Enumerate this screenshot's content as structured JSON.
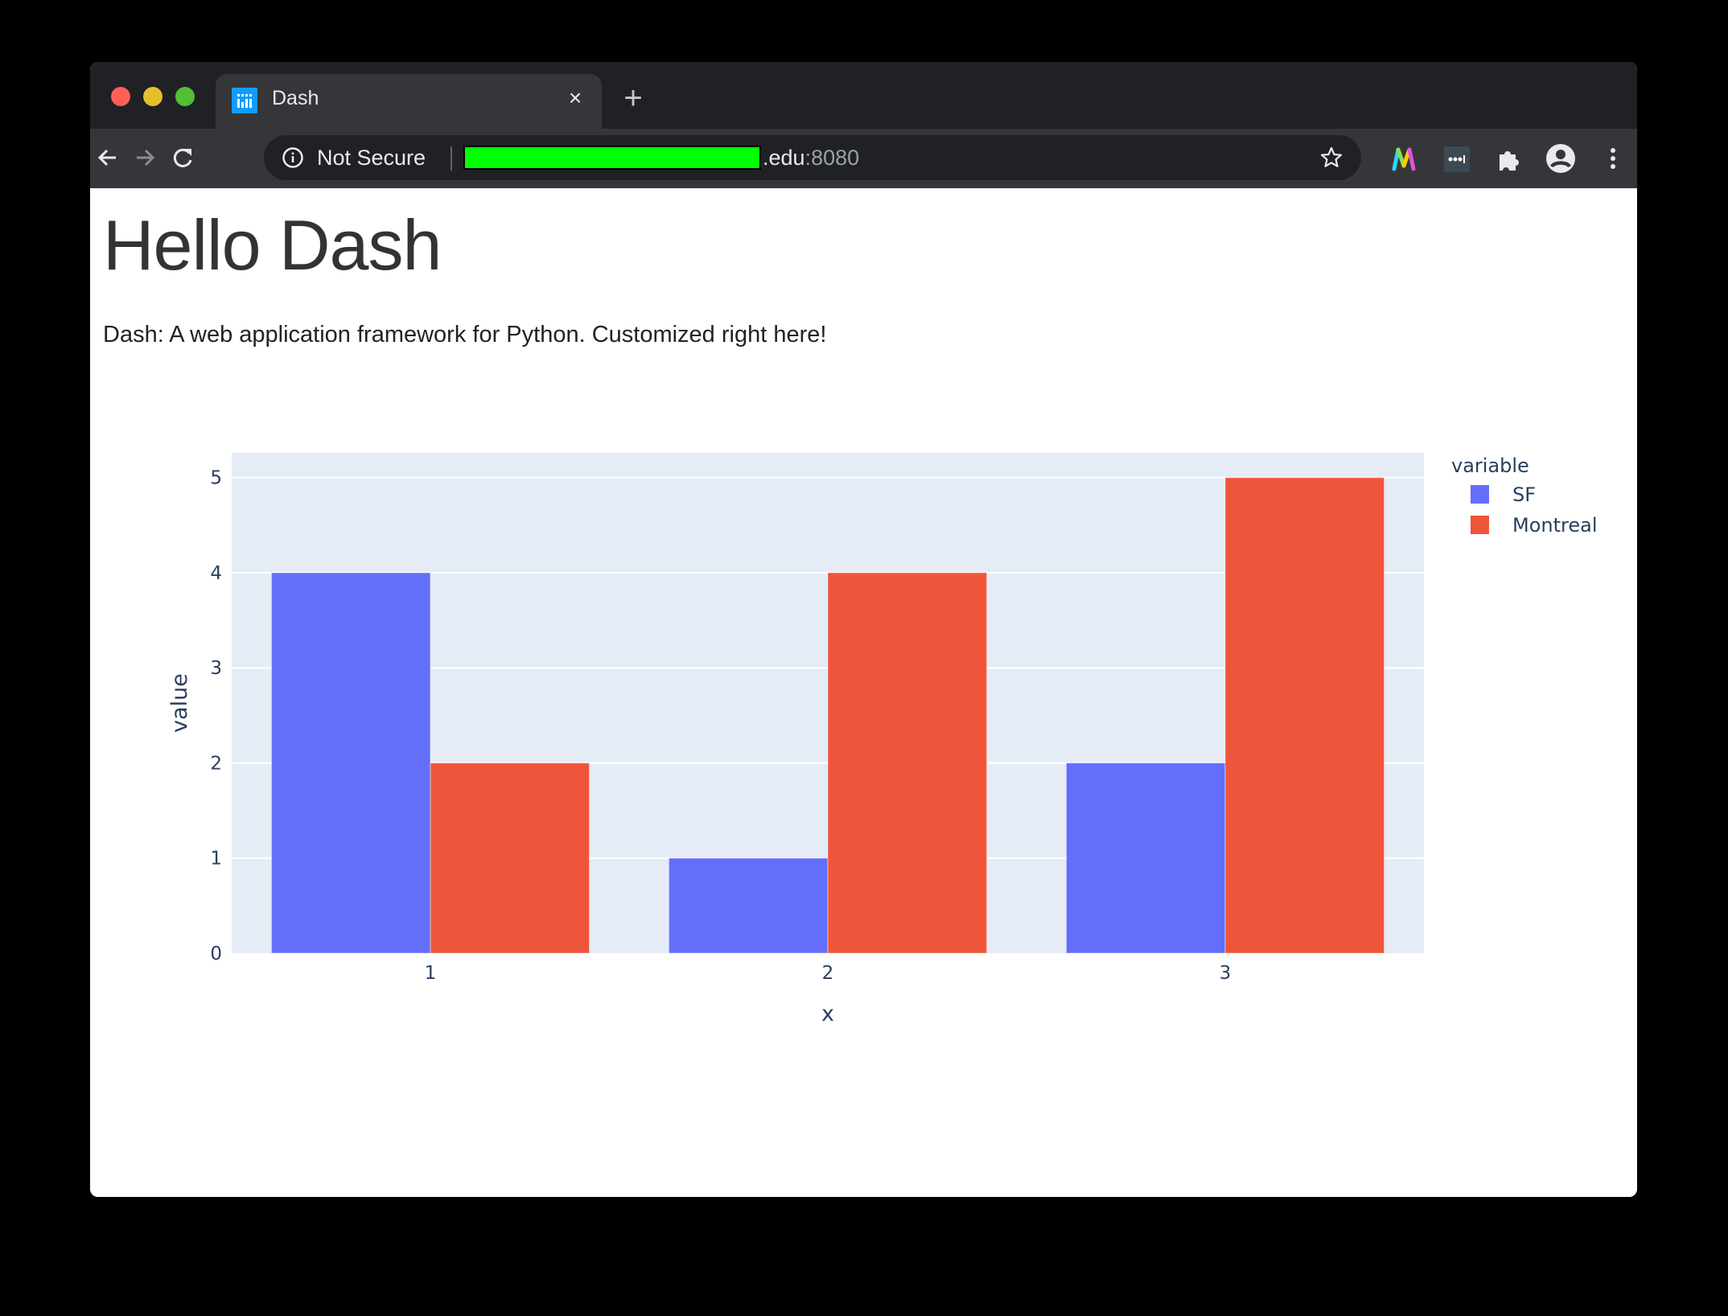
{
  "browser": {
    "tab": {
      "title": "Dash",
      "favicon": "dash-plotly-icon",
      "close_icon": "×"
    },
    "new_tab_icon": "+",
    "omnibox": {
      "security_label": "Not Secure",
      "url_visible": ".edu",
      "url_port": ":8080",
      "redacted_color": "#00ff00"
    },
    "extensions": [
      "monday-m-icon",
      "lastpass-icon",
      "puzzle-extensions-icon",
      "profile-avatar-icon",
      "kebab-menu-icon"
    ]
  },
  "page": {
    "heading": "Hello Dash",
    "subtitle": "Dash: A web application framework for Python. Customized right here!"
  },
  "chart_data": {
    "type": "bar",
    "barmode": "group",
    "title": "",
    "xlabel": "x",
    "ylabel": "value",
    "categories": [
      "1",
      "2",
      "3"
    ],
    "series": [
      {
        "name": "SF",
        "color": "#636efa",
        "values": [
          4,
          1,
          2
        ]
      },
      {
        "name": "Montreal",
        "color": "#ef553b",
        "values": [
          2,
          4,
          5
        ]
      }
    ],
    "yticks": [
      "0",
      "1",
      "2",
      "3",
      "4",
      "5"
    ],
    "ylim": [
      0,
      5.26
    ],
    "grid": true,
    "plot_bgcolor": "#e5ecf6",
    "legend": {
      "title": "variable",
      "position": "right-top"
    }
  }
}
